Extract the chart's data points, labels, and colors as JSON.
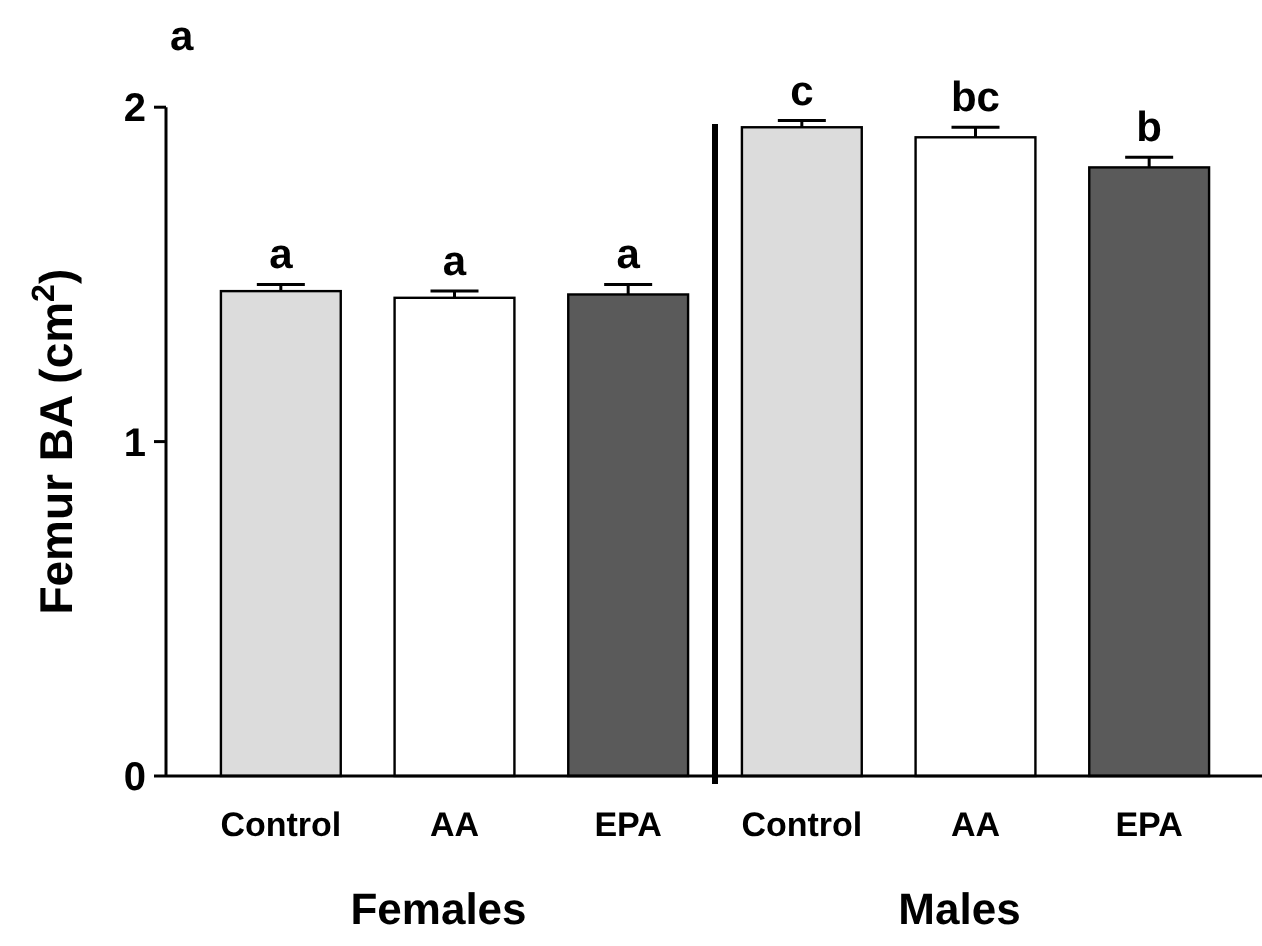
{
  "chart_data": {
    "type": "bar",
    "ylabel": "Femur BA (cm$^{2}$)",
    "categories": [
      "Control",
      "AA",
      "EPA",
      "Control",
      "AA",
      "EPA"
    ],
    "series": [
      {
        "colors": [
          "#dcdcdc",
          "#ffffff",
          "#5a5a5a",
          "#dcdcdc",
          "#ffffff",
          "#5a5a5a"
        ],
        "values": [
          1.45,
          1.43,
          1.44,
          1.94,
          1.91,
          1.82
        ],
        "errors": [
          0.02,
          0.02,
          0.03,
          0.02,
          0.03,
          0.03
        ],
        "value_labels": [
          "a",
          "a",
          "a",
          "c",
          "bc",
          "b"
        ]
      }
    ],
    "ylim": [
      0,
      2
    ],
    "yticks": [
      0,
      1,
      2
    ],
    "annotations": [
      "a",
      "Females",
      "Males"
    ]
  }
}
